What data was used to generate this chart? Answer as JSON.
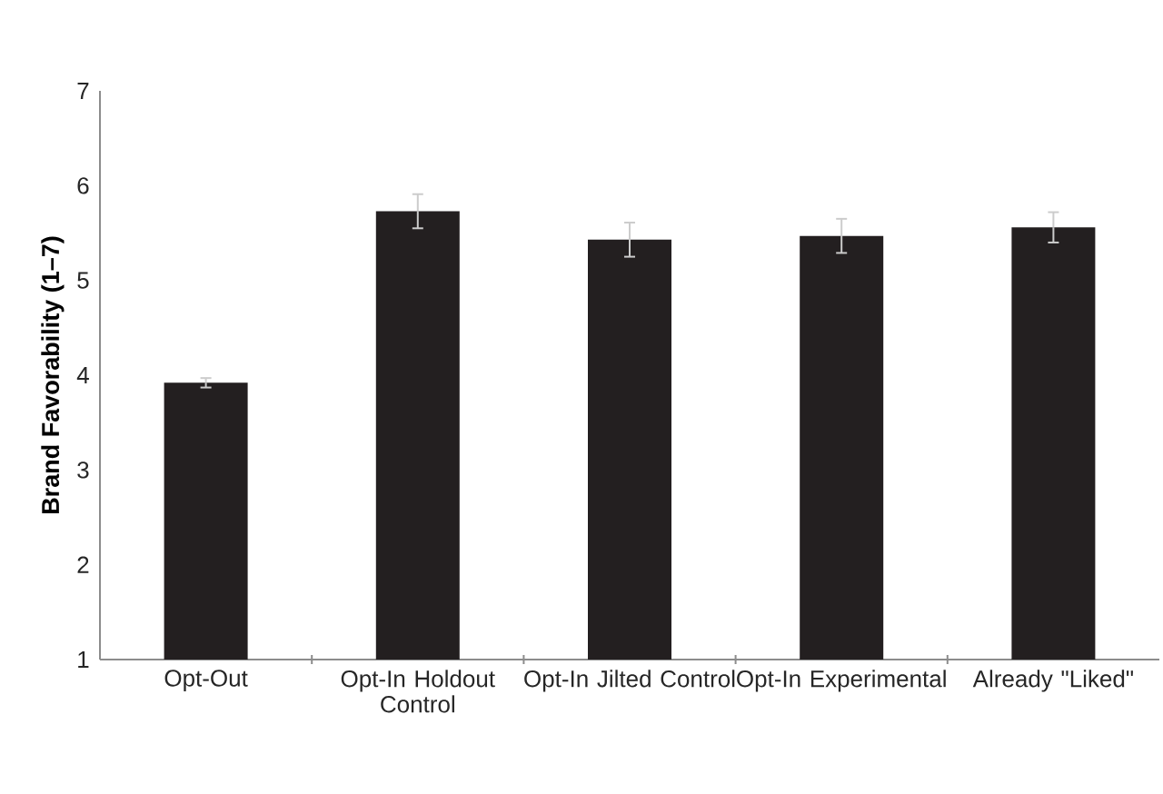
{
  "chart_data": {
    "type": "bar",
    "ylabel": "**Brand Favorability (1–7)**",
    "categories": [
      "Opt-Out",
      "Opt-In Holdout Control",
      "Opt-In Jilted Control",
      "Opt-In Experimental",
      "Already \"Liked\""
    ],
    "values": [
      3.92,
      5.73,
      5.43,
      5.47,
      5.56
    ],
    "errors": [
      0.05,
      0.18,
      0.18,
      0.18,
      0.16
    ],
    "color": "#231f20",
    "ylim": [
      1,
      7
    ],
    "yticks": [
      1,
      2,
      3,
      4,
      5,
      6,
      7
    ],
    "grid": false
  }
}
